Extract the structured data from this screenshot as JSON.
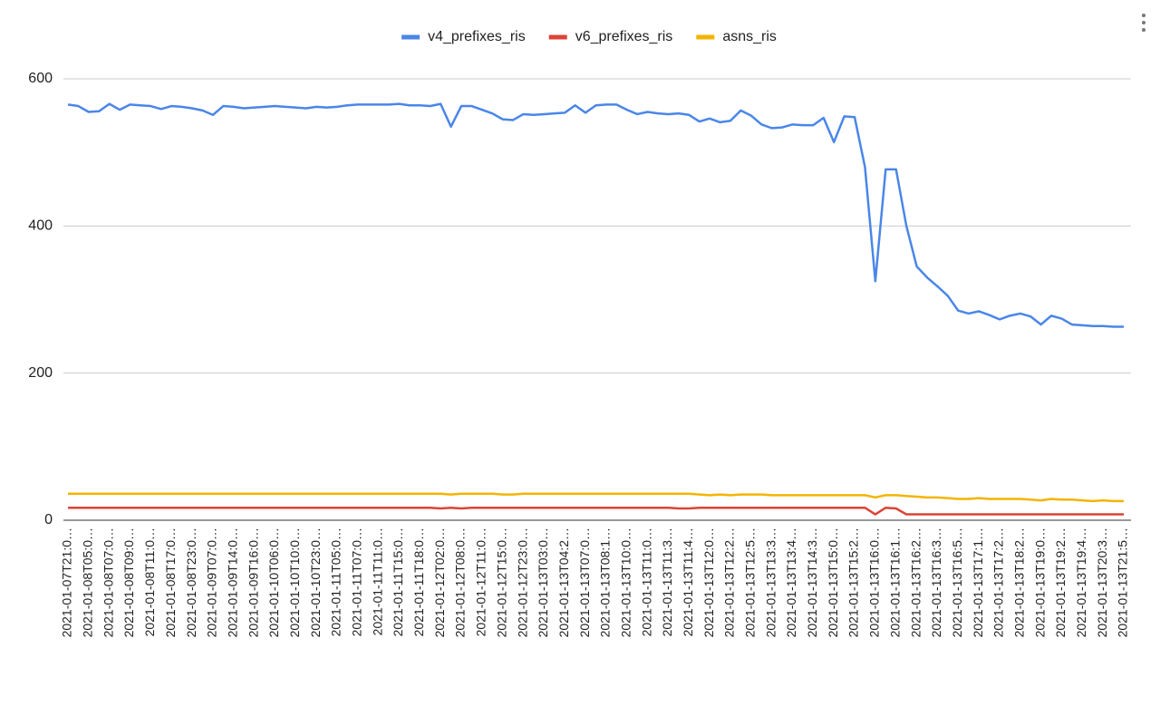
{
  "chart_data": {
    "type": "line",
    "categories": [
      "2021-01-07T21:0…",
      null,
      "2021-01-08T05:0…",
      null,
      "2021-01-08T07:0…",
      null,
      "2021-01-08T09:0…",
      null,
      "2021-01-08T11:0…",
      null,
      "2021-01-08T17:0…",
      null,
      "2021-01-08T23:0…",
      null,
      "2021-01-09T07:0…",
      null,
      "2021-01-09T14:0…",
      null,
      "2021-01-09T16:0…",
      null,
      "2021-01-10T06:0…",
      null,
      "2021-01-10T10:0…",
      null,
      "2021-01-10T23:0…",
      null,
      "2021-01-11T05:0…",
      null,
      "2021-01-11T07:0…",
      null,
      "2021-01-11T11:0…",
      null,
      "2021-01-11T15:0…",
      null,
      "2021-01-11T18:0…",
      null,
      "2021-01-12T02:0…",
      null,
      "2021-01-12T08:0…",
      null,
      "2021-01-12T11:0…",
      null,
      "2021-01-12T15:0…",
      null,
      "2021-01-12T23:0…",
      null,
      "2021-01-13T03:0…",
      null,
      "2021-01-13T04:2…",
      null,
      "2021-01-13T07:0…",
      null,
      "2021-01-13T08:1…",
      null,
      "2021-01-13T10:0…",
      null,
      "2021-01-13T11:0…",
      null,
      "2021-01-13T11:3…",
      null,
      "2021-01-13T11:4…",
      null,
      "2021-01-13T12:0…",
      null,
      "2021-01-13T12:2…",
      null,
      "2021-01-13T12:5…",
      null,
      "2021-01-13T13:3…",
      null,
      "2021-01-13T13:4…",
      null,
      "2021-01-13T14:3…",
      null,
      "2021-01-13T15:0…",
      null,
      "2021-01-13T15:2…",
      null,
      "2021-01-13T16:0…",
      null,
      "2021-01-13T16:1…",
      null,
      "2021-01-13T16:2…",
      null,
      "2021-01-13T16:3…",
      null,
      "2021-01-13T16:5…",
      null,
      "2021-01-13T17:1…",
      null,
      "2021-01-13T17:2…",
      null,
      "2021-01-13T18:2…",
      null,
      "2021-01-13T19:0…",
      null,
      "2021-01-13T19:2…",
      null,
      "2021-01-13T19:4…",
      null,
      "2021-01-13T20:3…",
      null,
      "2021-01-13T21:5…"
    ],
    "series": [
      {
        "name": "v4_prefixes_ris",
        "color": "#4a86e8",
        "values": [
          565,
          563,
          555,
          556,
          566,
          558,
          565,
          564,
          563,
          559,
          563,
          562,
          560,
          557,
          551,
          563,
          562,
          560,
          561,
          562,
          563,
          562,
          561,
          560,
          562,
          561,
          562,
          564,
          565,
          565,
          565,
          565,
          566,
          564,
          564,
          563,
          566,
          535,
          563,
          563,
          558,
          553,
          545,
          544,
          552,
          551,
          552,
          553,
          554,
          564,
          554,
          564,
          565,
          565,
          558,
          552,
          555,
          553,
          552,
          553,
          551,
          542,
          546,
          541,
          543,
          557,
          550,
          538,
          533,
          534,
          538,
          537,
          537,
          547,
          514,
          549,
          548,
          480,
          325,
          477,
          477,
          400,
          345,
          330,
          318,
          305,
          285,
          281,
          284,
          279,
          273,
          278,
          281,
          277,
          266,
          278,
          274,
          266,
          265,
          264,
          264,
          263,
          263
        ]
      },
      {
        "name": "v6_prefixes_ris",
        "color": "#dc4437",
        "values": [
          17,
          17,
          17,
          17,
          17,
          17,
          17,
          17,
          17,
          17,
          17,
          17,
          17,
          17,
          17,
          17,
          17,
          17,
          17,
          17,
          17,
          17,
          17,
          17,
          17,
          17,
          17,
          17,
          17,
          17,
          17,
          17,
          17,
          17,
          17,
          17,
          16,
          17,
          16,
          17,
          17,
          17,
          17,
          17,
          17,
          17,
          17,
          17,
          17,
          17,
          17,
          17,
          17,
          17,
          17,
          17,
          17,
          17,
          17,
          16,
          16,
          17,
          17,
          17,
          17,
          17,
          17,
          17,
          17,
          17,
          17,
          17,
          17,
          17,
          17,
          17,
          17,
          17,
          8,
          17,
          16,
          8,
          8,
          8,
          8,
          8,
          8,
          8,
          8,
          8,
          8,
          8,
          8,
          8,
          8,
          8,
          8,
          8,
          8,
          8,
          8,
          8,
          8
        ]
      },
      {
        "name": "asns_ris",
        "color": "#f4b400",
        "values": [
          36,
          36,
          36,
          36,
          36,
          36,
          36,
          36,
          36,
          36,
          36,
          36,
          36,
          36,
          36,
          36,
          36,
          36,
          36,
          36,
          36,
          36,
          36,
          36,
          36,
          36,
          36,
          36,
          36,
          36,
          36,
          36,
          36,
          36,
          36,
          36,
          36,
          35,
          36,
          36,
          36,
          36,
          35,
          35,
          36,
          36,
          36,
          36,
          36,
          36,
          36,
          36,
          36,
          36,
          36,
          36,
          36,
          36,
          36,
          36,
          36,
          35,
          34,
          35,
          34,
          35,
          35,
          35,
          34,
          34,
          34,
          34,
          34,
          34,
          34,
          34,
          34,
          34,
          31,
          34,
          34,
          33,
          32,
          31,
          31,
          30,
          29,
          29,
          30,
          29,
          29,
          29,
          29,
          28,
          27,
          29,
          28,
          28,
          27,
          26,
          27,
          26,
          26
        ]
      }
    ],
    "ylim": [
      0,
      600
    ],
    "yticks": [
      0,
      200,
      400,
      600
    ],
    "grid": true
  }
}
